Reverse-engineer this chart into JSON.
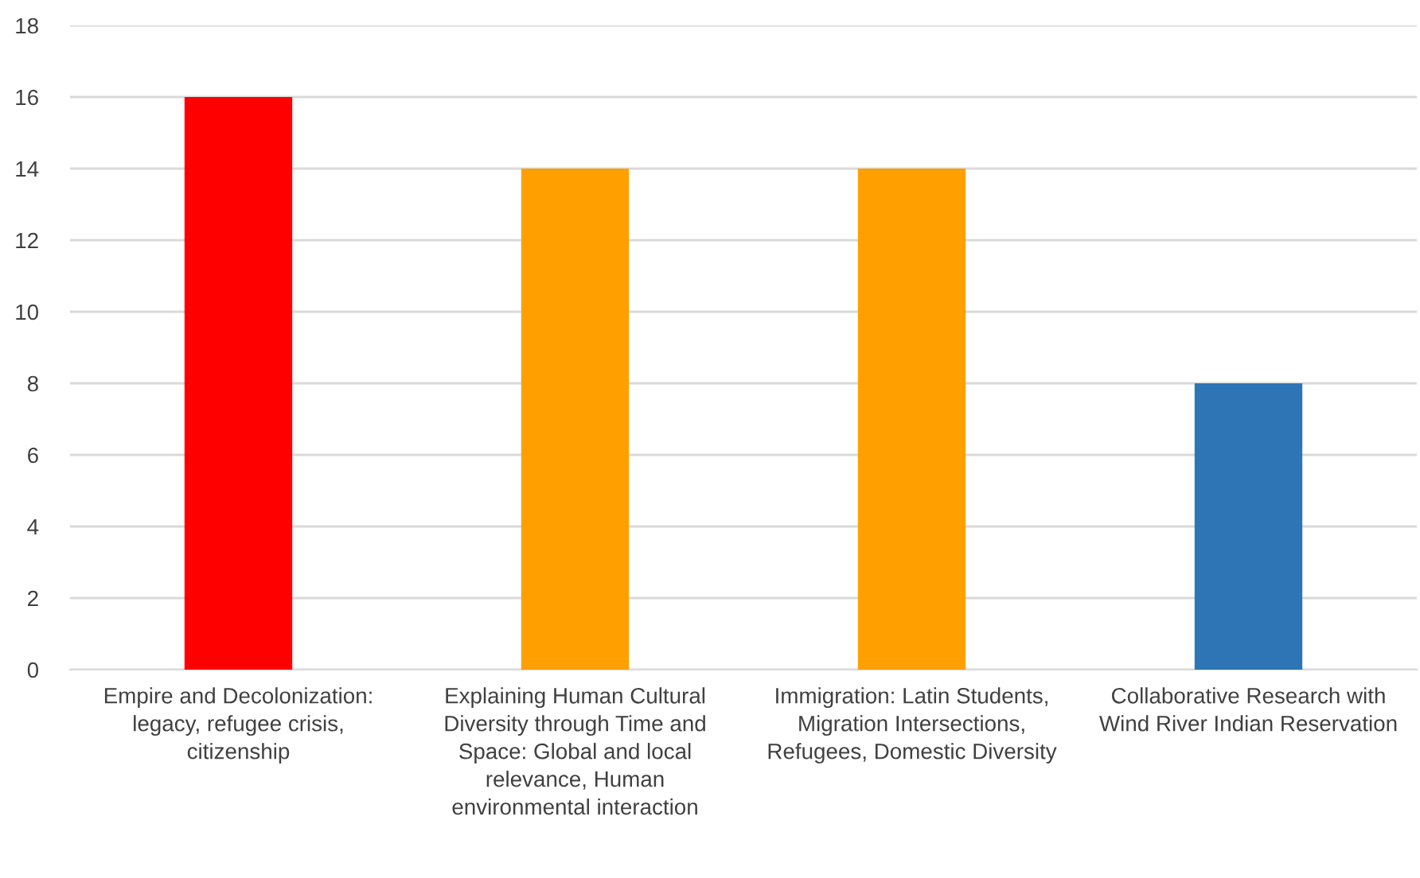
{
  "chart_data": {
    "type": "bar",
    "categories": [
      "Empire and Decolonization:\nlegacy, refugee crisis,\ncitizenship",
      "Explaining Human Cultural\nDiversity through Time and\nSpace: Global and local\nrelevance, Human\nenvironmental interaction",
      "Immigration: Latin Students,\nMigration Intersections,\nRefugees, Domestic Diversity",
      "Collaborative Research with\nWind River Indian Reservation"
    ],
    "values": [
      16,
      14,
      14,
      8
    ],
    "colors": [
      "#ff0000",
      "#ffa000",
      "#ffa000",
      "#2e75b6"
    ],
    "ylim": [
      0,
      18
    ],
    "yticks": [
      0,
      2,
      4,
      6,
      8,
      10,
      12,
      14,
      16,
      18
    ],
    "grid": "y"
  }
}
